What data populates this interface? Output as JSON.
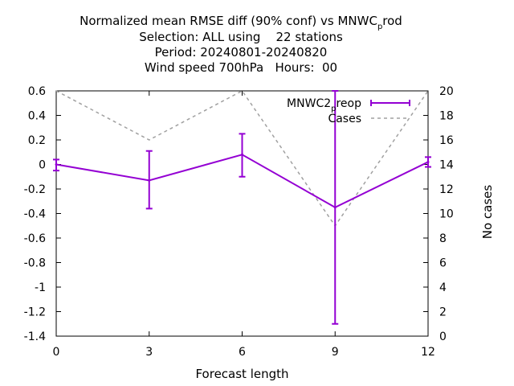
{
  "chart_data": {
    "type": "line",
    "title_lines": [
      "Normalized mean RMSE diff (90% conf) vs MNWC_prod",
      "Selection: ALL using    22 stations",
      "Period: 20240801-20240820",
      "Wind speed 700hPa   Hours:  00"
    ],
    "title_main": "Normalized mean RMSE diff (90% conf) vs MNWC",
    "title_sub": "p",
    "title_tail": "rod",
    "line2": "Selection: ALL using    22 stations",
    "line3": "Period: 20240801-20240820",
    "line4": "Wind speed 700hPa   Hours:  00",
    "xlabel": "Forecast length",
    "ylabel": "",
    "y2label": "No cases",
    "x": [
      0,
      3,
      6,
      9,
      12
    ],
    "xlim": [
      0,
      12
    ],
    "ylim": [
      -1.4,
      0.6
    ],
    "y2lim": [
      0,
      20
    ],
    "xticks": [
      "0",
      "3",
      "6",
      "9",
      "12"
    ],
    "yticks": [
      "0.6",
      "0.4",
      "0.2",
      "0",
      "-0.2",
      "-0.4",
      "-0.6",
      "-0.8",
      "-1",
      "-1.2",
      "-1.4"
    ],
    "y2ticks": [
      "20",
      "18",
      "16",
      "14",
      "12",
      "10",
      "8",
      "6",
      "4",
      "2",
      "0"
    ],
    "grid": false,
    "legend_position": "top-right",
    "series": [
      {
        "name": "MNWC2_preop",
        "name_main": "MNWC2",
        "name_sub": "p",
        "name_tail": "reop",
        "color": "#9400d3",
        "axis": "y",
        "values": [
          0.0,
          -0.13,
          0.08,
          -0.35,
          0.02
        ],
        "err_low": [
          -0.05,
          -0.36,
          -0.1,
          -1.3,
          -0.02
        ],
        "err_high": [
          0.04,
          0.11,
          0.25,
          0.6,
          0.06
        ]
      },
      {
        "name": "Cases",
        "color": "#a0a0a0",
        "axis": "y2",
        "style": "dashed",
        "values": [
          20,
          16,
          20,
          9,
          20
        ]
      }
    ]
  }
}
